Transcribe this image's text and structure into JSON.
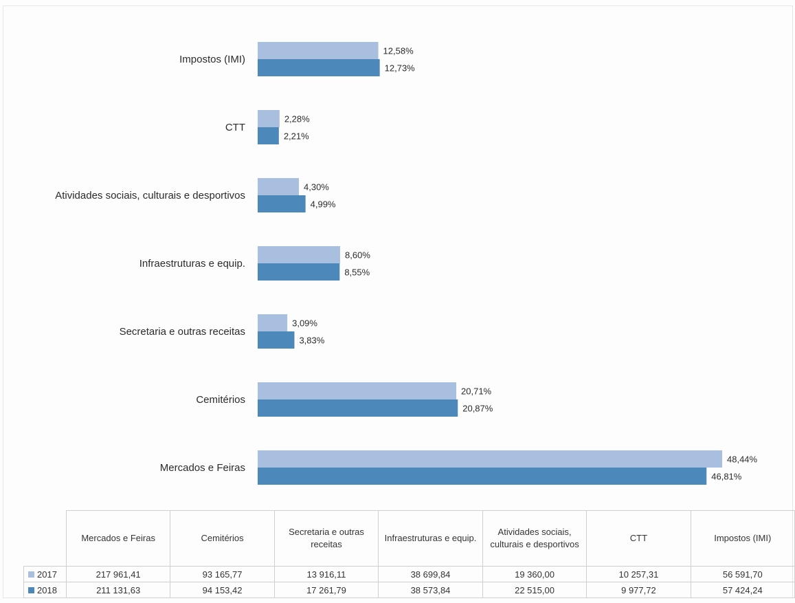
{
  "chart_data": {
    "type": "bar",
    "orientation": "horizontal",
    "categories": [
      "Impostos (IMI)",
      "CTT",
      "Atividades sociais, culturais e desportivos",
      "Infraestruturas e equip.",
      "Secretaria e outras receitas",
      "Cemitérios",
      "Mercados e Feiras"
    ],
    "series": [
      {
        "name": "2017",
        "color": "#a8bfdf",
        "values": [
          12.58,
          2.28,
          4.3,
          8.6,
          3.09,
          20.71,
          48.44
        ],
        "labels": [
          "12,58%",
          "2,28%",
          "4,30%",
          "8,60%",
          "3,09%",
          "20,71%",
          "48,44%"
        ]
      },
      {
        "name": "2018",
        "color": "#4c88b9",
        "values": [
          12.73,
          2.21,
          4.99,
          8.55,
          3.83,
          20.87,
          46.81
        ],
        "labels": [
          "12,73%",
          "2,21%",
          "4,99%",
          "8,55%",
          "3,83%",
          "20,87%",
          "46,81%"
        ]
      }
    ],
    "xlim": [
      0,
      50
    ],
    "grid": false,
    "legend": "data-table",
    "table": {
      "columns": [
        "Mercados e Feiras",
        "Cemitérios",
        "Secretaria e outras receitas",
        "Infraestruturas e equip.",
        "Atividades sociais, culturais e desportivos",
        "CTT",
        "Impostos (IMI)"
      ],
      "rows": [
        {
          "label": "2017",
          "color": "#a8bfdf",
          "values": [
            "217 961,41",
            "93 165,77",
            "13 916,11",
            "38 699,84",
            "19 360,00",
            "10 257,31",
            "56 591,70"
          ]
        },
        {
          "label": "2018",
          "color": "#4c88b9",
          "values": [
            "211 131,63",
            "94 153,42",
            "17 261,79",
            "38 573,84",
            "22 515,00",
            "9 977,72",
            "57 424,24"
          ]
        }
      ]
    }
  }
}
